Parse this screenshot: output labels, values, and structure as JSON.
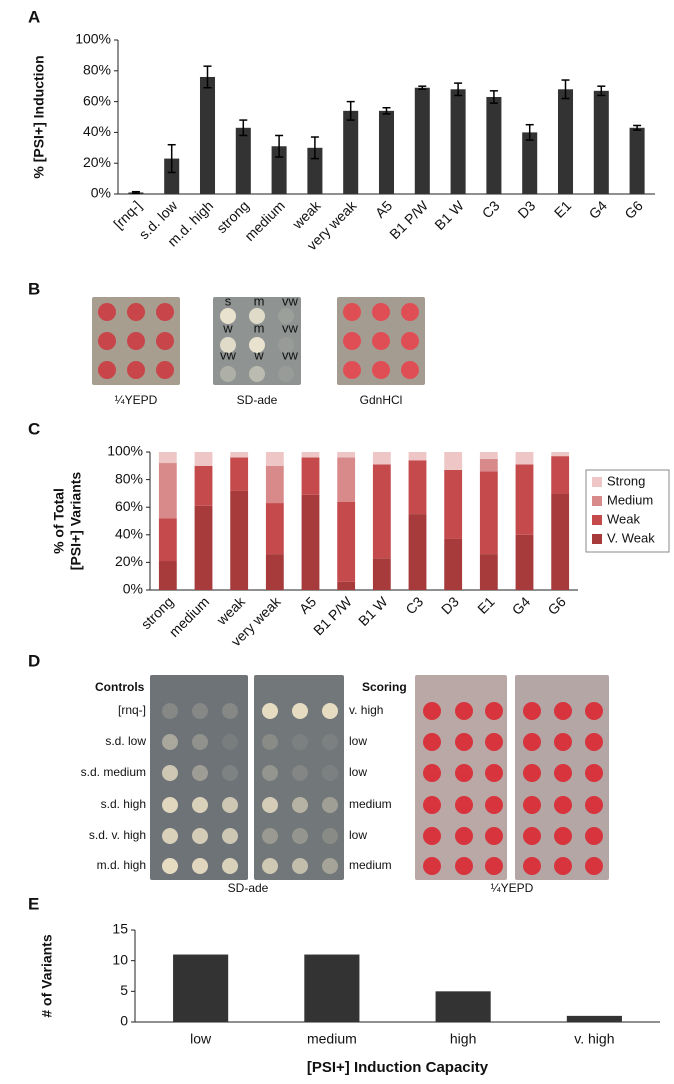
{
  "chart_data": [
    {
      "type": "bar",
      "panel": "A",
      "y_label": "% [PSI+] Induction",
      "categories": [
        "[rnq-]",
        "s.d. low",
        "m.d. high",
        "strong",
        "medium",
        "weak",
        "very weak",
        "A5",
        "B1 P/W",
        "B1 W",
        "C3",
        "D3",
        "E1",
        "G4",
        "G6"
      ],
      "values": [
        1,
        23,
        76,
        43,
        31,
        30,
        54,
        54,
        69,
        68,
        63,
        40,
        68,
        67,
        43
      ],
      "errors": [
        0.5,
        9,
        7,
        5,
        7,
        7,
        6,
        2,
        1,
        4,
        4,
        5,
        6,
        3,
        1.5
      ],
      "color": "#333333",
      "ylim": [
        0,
        100
      ],
      "yticks": [
        {
          "value": 0,
          "label": "0%"
        },
        {
          "value": 20,
          "label": "20%"
        },
        {
          "value": 40,
          "label": "40%"
        },
        {
          "value": 60,
          "label": "60%"
        },
        {
          "value": 80,
          "label": "80%"
        },
        {
          "value": 100,
          "label": "100%"
        }
      ]
    },
    {
      "type": "bar",
      "stacked": true,
      "panel": "C",
      "y_label": [
        "% of Total",
        "[PSI+] Variants"
      ],
      "categories": [
        "strong",
        "medium",
        "weak",
        "very weak",
        "A5",
        "B1 P/W",
        "B1 W",
        "C3",
        "D3",
        "E1",
        "G4",
        "G6"
      ],
      "series": [
        {
          "name": "V. Weak",
          "color": "#a73b3c",
          "values": [
            21,
            61,
            72,
            26,
            69,
            6,
            23,
            55,
            37,
            26,
            40,
            70
          ]
        },
        {
          "name": "Weak",
          "color": "#c44a4c",
          "values": [
            31,
            29,
            24,
            37,
            27,
            58,
            68,
            39,
            50,
            60,
            51,
            27
          ]
        },
        {
          "name": "Medium",
          "color": "#d88a8b",
          "values": [
            40,
            0,
            0,
            27,
            0,
            32,
            0,
            0,
            0,
            9,
            0,
            0
          ]
        },
        {
          "name": "Strong",
          "color": "#eec6c6",
          "values": [
            8,
            10,
            4,
            10,
            4,
            4,
            9,
            6,
            13,
            5,
            9,
            3
          ]
        }
      ],
      "legend": "right",
      "ylim": [
        0,
        100
      ],
      "yticks": [
        {
          "value": 0,
          "label": "0%"
        },
        {
          "value": 20,
          "label": "20%"
        },
        {
          "value": 40,
          "label": "40%"
        },
        {
          "value": 60,
          "label": "60%"
        },
        {
          "value": 80,
          "label": "80%"
        },
        {
          "value": 100,
          "label": "100%"
        }
      ]
    },
    {
      "type": "bar",
      "panel": "E",
      "y_label": "# of Variants",
      "x_label": "[PSI+] Induction Capacity",
      "categories": [
        "low",
        "medium",
        "high",
        "v. high"
      ],
      "values": [
        11,
        11,
        5,
        1
      ],
      "color": "#333333",
      "ylim": [
        0,
        15
      ],
      "yticks": [
        0,
        5,
        10,
        15
      ]
    }
  ],
  "panel_b": {
    "label": "B",
    "plates": [
      "¼YEPD",
      "SD-ade",
      "GdnHCl"
    ],
    "spots": [
      [
        "s",
        "m",
        "vw"
      ],
      [
        "w",
        "m",
        "vw"
      ],
      [
        "vw",
        "w",
        "vw"
      ]
    ]
  },
  "panel_d": {
    "label": "D",
    "controls_title": "Controls",
    "scoring_title": "Scoring",
    "controls": [
      "[rnq-]",
      "s.d. low",
      "s.d. medium",
      "s.d. high",
      "s.d. v. high",
      "m.d. high"
    ],
    "scoring": [
      "v. high",
      "low",
      "low",
      "medium",
      "low",
      "medium"
    ],
    "captions": [
      "SD-ade",
      "¼YEPD"
    ]
  }
}
